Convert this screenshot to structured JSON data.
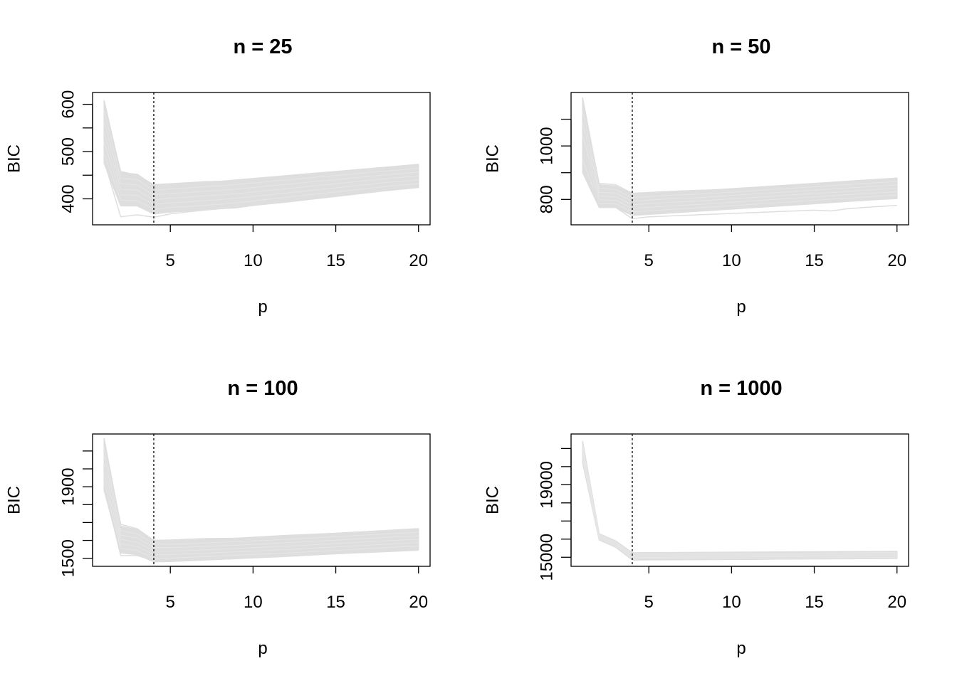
{
  "chart_data": [
    {
      "type": "line",
      "title": "n = 25",
      "xlabel": "p",
      "ylabel": "BIC",
      "xlim": [
        0.3,
        20.7
      ],
      "ylim": [
        345,
        625
      ],
      "xticks": [
        5,
        10,
        15,
        20
      ],
      "yticks": [
        400,
        450,
        500,
        550,
        600
      ],
      "ytick_labels": [
        "400",
        "",
        "500",
        "",
        "600"
      ],
      "vline": 4,
      "series_color": "#dedede",
      "band": {
        "x": [
          1,
          2,
          3,
          4,
          5,
          6,
          7,
          8,
          9,
          10,
          11,
          12,
          13,
          14,
          15,
          16,
          17,
          18,
          19,
          20
        ],
        "min": [
          475,
          385,
          385,
          368,
          372,
          374,
          376,
          379,
          382,
          386,
          390,
          394,
          398,
          402,
          406,
          410,
          414,
          418,
          421,
          424
        ],
        "max": [
          608,
          455,
          452,
          428,
          431,
          433,
          436,
          437,
          440,
          443,
          446,
          449,
          452,
          455,
          458,
          461,
          464,
          467,
          470,
          473
        ]
      },
      "outliers": [
        {
          "x": [
            1,
            2,
            3,
            4,
            5,
            6,
            7,
            8,
            9,
            10,
            12,
            14,
            16,
            18,
            20
          ],
          "y": [
            480,
            362,
            366,
            361,
            368,
            372,
            376,
            379,
            381,
            386,
            393,
            401,
            409,
            417,
            424
          ]
        },
        {
          "x": [
            1,
            2,
            3,
            4,
            5,
            7,
            9,
            11,
            13,
            15,
            17,
            19,
            20
          ],
          "y": [
            600,
            458,
            450,
            430,
            432,
            436,
            438,
            444,
            452,
            455,
            460,
            466,
            472
          ]
        }
      ]
    },
    {
      "type": "line",
      "title": "n = 50",
      "xlabel": "p",
      "ylabel": "BIC",
      "xlim": [
        0.3,
        20.7
      ],
      "ylim": [
        705,
        1200
      ],
      "xticks": [
        5,
        10,
        15,
        20
      ],
      "yticks": [
        800,
        900,
        1000,
        1100
      ],
      "ytick_labels": [
        "800",
        "",
        "1000",
        ""
      ],
      "vline": 4,
      "series_color": "#dedede",
      "band": {
        "x": [
          1,
          2,
          3,
          4,
          5,
          6,
          7,
          8,
          9,
          10,
          11,
          12,
          13,
          14,
          15,
          16,
          17,
          18,
          19,
          20
        ],
        "min": [
          900,
          770,
          770,
          740,
          744,
          748,
          752,
          756,
          760,
          764,
          768,
          772,
          776,
          780,
          784,
          788,
          792,
          796,
          800,
          803
        ],
        "max": [
          1180,
          855,
          850,
          820,
          824,
          828,
          830,
          832,
          836,
          840,
          844,
          848,
          852,
          856,
          860,
          864,
          868,
          872,
          876,
          880
        ]
      },
      "outliers": [
        {
          "x": [
            1,
            2,
            3,
            4,
            5,
            7,
            9,
            11,
            13,
            15,
            16,
            17,
            18,
            20
          ],
          "y": [
            1000,
            770,
            770,
            728,
            735,
            740,
            745,
            750,
            755,
            760,
            757,
            765,
            770,
            778
          ]
        },
        {
          "x": [
            1,
            2,
            3,
            4,
            5,
            7,
            9,
            11,
            13,
            15,
            17,
            19,
            20
          ],
          "y": [
            1160,
            860,
            855,
            823,
            826,
            832,
            836,
            843,
            849,
            855,
            862,
            870,
            878
          ]
        }
      ]
    },
    {
      "type": "line",
      "title": "n = 100",
      "xlabel": "p",
      "ylabel": "BIC",
      "xlim": [
        0.3,
        20.7
      ],
      "ylim": [
        1455,
        2195
      ],
      "xticks": [
        5,
        10,
        15,
        20
      ],
      "yticks": [
        1500,
        1600,
        1700,
        1800,
        1900,
        2000,
        2100
      ],
      "ytick_labels": [
        "1500",
        "",
        "",
        "",
        "1900",
        "",
        ""
      ],
      "vline": 4,
      "series_color": "#dedede",
      "band": {
        "x": [
          1,
          2,
          3,
          4,
          5,
          6,
          7,
          8,
          9,
          10,
          11,
          12,
          13,
          14,
          15,
          16,
          17,
          18,
          19,
          20
        ],
        "min": [
          1880,
          1530,
          1520,
          1480,
          1482,
          1486,
          1490,
          1494,
          1498,
          1502,
          1506,
          1510,
          1515,
          1520,
          1525,
          1530,
          1535,
          1540,
          1545,
          1548
        ],
        "max": [
          2170,
          1680,
          1660,
          1600,
          1598,
          1600,
          1604,
          1608,
          1612,
          1616,
          1620,
          1625,
          1630,
          1635,
          1640,
          1645,
          1650,
          1655,
          1660,
          1664
        ]
      },
      "outliers": [
        {
          "x": [
            1,
            2,
            3,
            4,
            5,
            7,
            10,
            15,
            20
          ],
          "y": [
            1900,
            1515,
            1515,
            1488,
            1490,
            1495,
            1505,
            1525,
            1545
          ]
        },
        {
          "x": [
            1,
            2,
            3,
            4,
            5,
            7,
            9,
            12,
            15,
            18,
            20
          ],
          "y": [
            2150,
            1690,
            1665,
            1600,
            1602,
            1610,
            1612,
            1628,
            1640,
            1655,
            1666
          ]
        }
      ]
    },
    {
      "type": "line",
      "title": "n = 1000",
      "xlabel": "p",
      "ylabel": "BIC",
      "xlim": [
        0.3,
        20.7
      ],
      "ylim": [
        14500,
        21800
      ],
      "xticks": [
        5,
        10,
        15,
        20
      ],
      "yticks": [
        15000,
        16000,
        17000,
        18000,
        19000,
        20000,
        21000
      ],
      "ytick_labels": [
        "15000",
        "",
        "",
        "",
        "19000",
        "",
        ""
      ],
      "vline": 4,
      "series_color": "#dedede",
      "band": {
        "x": [
          1,
          2,
          3,
          4,
          5,
          6,
          7,
          8,
          9,
          10,
          11,
          12,
          13,
          14,
          15,
          16,
          17,
          18,
          19,
          20
        ],
        "min": [
          20200,
          15950,
          15550,
          14850,
          14855,
          14860,
          14865,
          14870,
          14875,
          14880,
          14885,
          14890,
          14895,
          14900,
          14905,
          14910,
          14915,
          14920,
          14925,
          14930
        ],
        "max": [
          21400,
          16300,
          15900,
          15250,
          15255,
          15260,
          15265,
          15270,
          15275,
          15280,
          15285,
          15290,
          15295,
          15300,
          15305,
          15310,
          15315,
          15320,
          15325,
          15330
        ]
      },
      "outliers": []
    }
  ]
}
